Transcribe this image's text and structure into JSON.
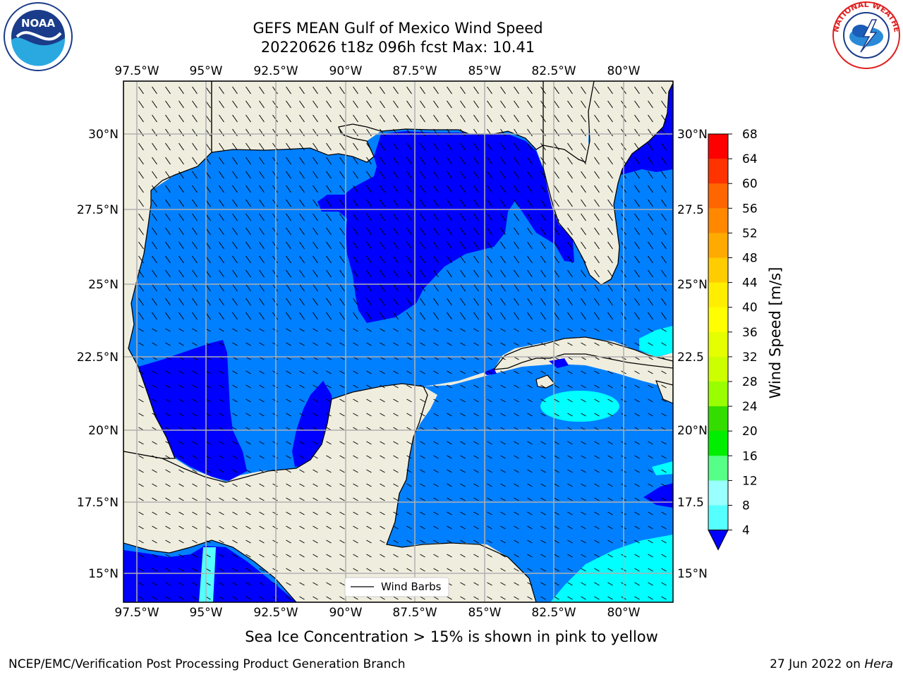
{
  "header": {
    "title_line1": "GEFS MEAN Gulf of Mexico Wind Speed",
    "title_line2": "20220626 t18z 096h fcst   Max: 10.41"
  },
  "logos": {
    "left": {
      "name": "noaa-logo",
      "text": "NOAA",
      "ring_text": "NATIONAL OCEANIC AND ATMOSPHERIC ADMINISTRATION · U.S. DEPARTMENT OF COMMERCE"
    },
    "right": {
      "name": "nws-logo",
      "ring_text": "NATIONAL WEATHER SERVICE"
    }
  },
  "map": {
    "lon_labels": [
      "97.5°W",
      "95°W",
      "92.5°W",
      "90°W",
      "87.5°W",
      "85°W",
      "82.5°W",
      "80°W"
    ],
    "lat_labels": [
      "30°N",
      "27.5°N",
      "25°N",
      "22.5°N",
      "20°N",
      "17.5°N",
      "15°N"
    ],
    "lat_labels_right": [
      "30°N",
      "27.5",
      "25°N",
      "22.5",
      "20°N",
      "17.5",
      "15°N"
    ],
    "legend_label": "Wind Barbs",
    "colors": {
      "land": "#efedde",
      "ocean_4_8": "#0080ff",
      "ocean_under_4": "#0000ff",
      "ocean_8_12": "#00ffff",
      "grid": "#b0b0b0"
    }
  },
  "colorbar": {
    "label": "Wind Speed [m/s]",
    "ticks": [
      "68",
      "64",
      "60",
      "56",
      "52",
      "48",
      "44",
      "40",
      "36",
      "32",
      "28",
      "24",
      "20",
      "16",
      "12",
      "8",
      "4"
    ],
    "colors_top_to_bottom": [
      "#ff0000",
      "#ff3300",
      "#ff6600",
      "#ff8800",
      "#ffaa00",
      "#ffcc00",
      "#ffee00",
      "#ffff00",
      "#e5ff00",
      "#ccff00",
      "#99ff00",
      "#33dd00",
      "#00ee00",
      "#55ff88",
      "#99ffff",
      "#55ffff",
      "#00ffff",
      "#0080ff"
    ],
    "under_color": "#0000ff"
  },
  "footer": {
    "note": "Sea Ice Concentration > 15% is shown in pink to yellow",
    "credit": "NCEP/EMC/Verification Post Processing Product Generation Branch",
    "date": "27 Jun 2022 on",
    "host": "Hera"
  }
}
